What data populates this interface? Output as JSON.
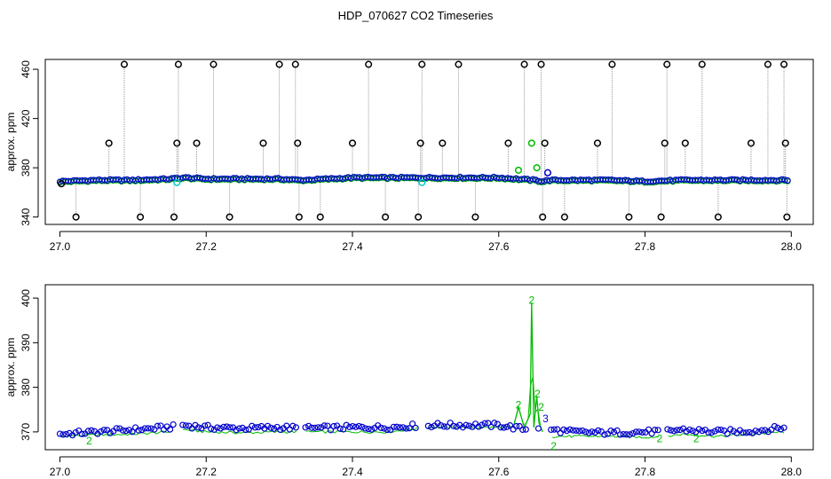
{
  "figure": {
    "title": "HDP_070627  CO2 Timeseries"
  },
  "colors": {
    "raw": "#000000",
    "cleaned": "#0000cc",
    "green": "#00bb00",
    "cyan": "#00cccc",
    "connector": "#999999"
  },
  "chart_data": [
    {
      "type": "scatter",
      "panel": "top",
      "xlabel": "",
      "ylabel": "approx. ppm",
      "xlim": [
        26.98,
        28.03
      ],
      "ylim": [
        334,
        468
      ],
      "xticks": [
        27.0,
        27.2,
        27.4,
        27.6,
        27.8,
        28.0
      ],
      "xtick_labels": [
        "27.0",
        "27.2",
        "27.4",
        "27.6",
        "27.8",
        "28.0"
      ],
      "yticks": [
        340,
        380,
        420,
        460
      ],
      "ytick_labels": [
        "340",
        "380",
        "420",
        "460"
      ],
      "grid": false,
      "baseline_series": {
        "x": [
          27.0,
          27.05,
          27.1,
          27.15,
          27.17,
          27.2,
          27.25,
          27.3,
          27.33,
          27.4,
          27.45,
          27.5,
          27.55,
          27.6,
          27.65,
          27.66,
          27.67,
          27.7,
          27.75,
          27.8,
          27.85,
          27.9,
          27.95,
          27.99
        ],
        "y": [
          369,
          370,
          370,
          371,
          372,
          371,
          371,
          371,
          370,
          372,
          372,
          372,
          372,
          372,
          370,
          369,
          370,
          370,
          370,
          369,
          370,
          370,
          370,
          370
        ]
      },
      "spikes": {
        "x": [
          27.002,
          27.022,
          27.067,
          27.088,
          27.11,
          27.156,
          27.16,
          27.162,
          27.187,
          27.21,
          27.232,
          27.278,
          27.3,
          27.322,
          27.325,
          27.327,
          27.356,
          27.4,
          27.422,
          27.445,
          27.49,
          27.493,
          27.495,
          27.523,
          27.545,
          27.568,
          27.613,
          27.635,
          27.658,
          27.66,
          27.663,
          27.69,
          27.735,
          27.755,
          27.778,
          27.822,
          27.827,
          27.83,
          27.855,
          27.878,
          27.9,
          27.945,
          27.968,
          27.99,
          27.992,
          27.994
        ],
        "y": [
          367,
          340,
          400,
          464,
          340,
          340,
          400,
          464,
          400,
          464,
          340,
          400,
          464,
          464,
          400,
          340,
          340,
          400,
          464,
          340,
          340,
          400,
          464,
          400,
          464,
          340,
          400,
          464,
          464,
          340,
          400,
          340,
          400,
          464,
          340,
          340,
          400,
          464,
          400,
          464,
          340,
          400,
          464,
          464,
          400,
          340
        ]
      },
      "highlights": [
        {
          "x": 27.627,
          "y": 378,
          "color": "green"
        },
        {
          "x": 27.645,
          "y": 400,
          "color": "green"
        },
        {
          "x": 27.652,
          "y": 380,
          "color": "green"
        },
        {
          "x": 27.667,
          "y": 376,
          "color": "cleaned"
        },
        {
          "x": 27.495,
          "y": 368,
          "color": "cyan"
        },
        {
          "x": 27.16,
          "y": 368,
          "color": "cyan"
        }
      ]
    },
    {
      "type": "line",
      "panel": "bottom",
      "xlabel": "",
      "ylabel": "approx. ppm",
      "xlim": [
        26.98,
        28.03
      ],
      "ylim": [
        366,
        403
      ],
      "xticks": [
        27.0,
        27.2,
        27.4,
        27.6,
        27.8,
        28.0
      ],
      "xtick_labels": [
        "27.0",
        "27.2",
        "27.4",
        "27.6",
        "27.8",
        "28.0"
      ],
      "yticks": [
        370,
        380,
        390,
        400
      ],
      "ytick_labels": [
        "370",
        "380",
        "390",
        "400"
      ],
      "grid": false,
      "gaps": [
        [
          27.155,
          27.165
        ],
        [
          27.325,
          27.335
        ],
        [
          27.49,
          27.5
        ],
        [
          27.64,
          27.65
        ],
        [
          27.655,
          27.67
        ],
        [
          27.82,
          27.83
        ]
      ],
      "blue_series": {
        "x": [
          27.0,
          27.05,
          27.1,
          27.15,
          27.17,
          27.2,
          27.25,
          27.3,
          27.33,
          27.4,
          27.45,
          27.5,
          27.55,
          27.6,
          27.64,
          27.67,
          27.7,
          27.75,
          27.8,
          27.83,
          27.85,
          27.9,
          27.95,
          27.99
        ],
        "y": [
          369.5,
          370.0,
          370.5,
          371.0,
          371.5,
          371.0,
          370.8,
          371.0,
          370.8,
          371.0,
          371.0,
          371.5,
          371.5,
          371.5,
          370.5,
          370.5,
          370.0,
          369.8,
          370.0,
          370.2,
          370.5,
          370.0,
          370.2,
          371.0
        ]
      },
      "green_series": {
        "x": [
          27.0,
          27.05,
          27.1,
          27.15,
          27.17,
          27.2,
          27.25,
          27.3,
          27.33,
          27.4,
          27.45,
          27.5,
          27.55,
          27.6,
          27.62,
          27.627,
          27.635,
          27.643,
          27.645,
          27.648,
          27.652,
          27.655,
          27.66,
          27.67,
          27.7,
          27.75,
          27.8,
          27.83,
          27.85,
          27.9,
          27.95,
          27.99
        ],
        "y": [
          369.0,
          369.3,
          369.5,
          370.0,
          370.5,
          370.0,
          369.8,
          370.0,
          370.0,
          370.0,
          370.0,
          371.0,
          371.0,
          371.0,
          371.0,
          375.5,
          371.0,
          374.0,
          399.0,
          371.0,
          378.0,
          372.0,
          370.0,
          369.0,
          369.0,
          369.0,
          368.8,
          369.0,
          369.5,
          369.0,
          369.5,
          370.0
        ]
      },
      "labels": [
        {
          "text": "2",
          "x": 27.627,
          "y": 376.0,
          "color": "green"
        },
        {
          "text": "2",
          "x": 27.645,
          "y": 399.5,
          "color": "green"
        },
        {
          "text": "2",
          "x": 27.653,
          "y": 378.5,
          "color": "green"
        },
        {
          "text": "2",
          "x": 27.658,
          "y": 375.5,
          "color": "green"
        },
        {
          "text": "3",
          "x": 27.664,
          "y": 373.0,
          "color": "cleaned"
        },
        {
          "text": "2",
          "x": 27.675,
          "y": 366.8,
          "color": "green"
        },
        {
          "text": "2",
          "x": 27.04,
          "y": 368.0,
          "color": "green"
        },
        {
          "text": "2",
          "x": 27.82,
          "y": 368.5,
          "color": "green"
        },
        {
          "text": "2",
          "x": 27.87,
          "y": 368.5,
          "color": "green"
        }
      ]
    }
  ]
}
